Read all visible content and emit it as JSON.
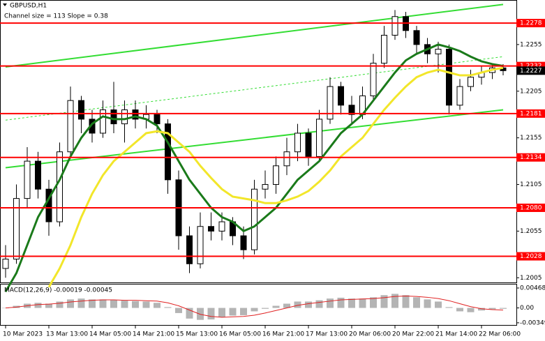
{
  "chart_data": [
    {
      "type": "candlestick",
      "title": "GBPUSD,H1",
      "subtitle": "Channel size = 113 Slope = 0.38",
      "categories": [
        "10 Mar 2023",
        null,
        null,
        null,
        "13 Mar 13:00",
        null,
        null,
        null,
        "14 Mar 05:00",
        null,
        null,
        null,
        "14 Mar 21:00",
        null,
        null,
        null,
        "15 Mar 13:00",
        null,
        null,
        null,
        "16 Mar 05:00",
        null,
        null,
        null,
        "16 Mar 21:00",
        null,
        null,
        null,
        "17 Mar 13:00",
        null,
        null,
        null,
        "20 Mar 06:00",
        null,
        null,
        null,
        "20 Mar 22:00",
        null,
        null,
        null,
        "21 Mar 14:00",
        null,
        null,
        null,
        "22 Mar 06:00",
        null,
        null
      ],
      "open": [
        1.2015,
        1.2025,
        1.209,
        1.213,
        1.21,
        1.2065,
        1.214,
        1.2195,
        1.2175,
        1.216,
        1.2185,
        1.217,
        1.2185,
        1.2175,
        1.218,
        1.217,
        1.211,
        1.205,
        1.202,
        1.206,
        1.2055,
        1.2065,
        1.205,
        1.2035,
        1.21,
        1.2105,
        1.2125,
        1.214,
        1.216,
        1.2135,
        1.2175,
        1.221,
        1.219,
        1.218,
        1.22,
        1.2235,
        1.2265,
        1.2285,
        1.227,
        1.2255,
        1.2245,
        1.225,
        1.219,
        1.221,
        1.222,
        1.2225,
        1.223
      ],
      "high": [
        1.204,
        1.2105,
        1.2145,
        1.214,
        1.211,
        1.215,
        1.221,
        1.22,
        1.2185,
        1.2195,
        1.2215,
        1.2195,
        1.2195,
        1.219,
        1.2185,
        1.2175,
        1.212,
        1.206,
        1.2075,
        1.2075,
        1.2075,
        1.207,
        1.206,
        1.211,
        1.212,
        1.2135,
        1.2155,
        1.217,
        1.2165,
        1.2185,
        1.222,
        1.2215,
        1.22,
        1.221,
        1.2245,
        1.2275,
        1.2292,
        1.229,
        1.2275,
        1.2262,
        1.2258,
        1.2255,
        1.2218,
        1.2228,
        1.2232,
        1.2235,
        1.2234
      ],
      "low": [
        1.2005,
        1.202,
        1.208,
        1.209,
        1.205,
        1.206,
        1.2135,
        1.216,
        1.215,
        1.2155,
        1.216,
        1.215,
        1.2165,
        1.2165,
        1.216,
        1.2095,
        1.2035,
        1.201,
        1.2015,
        1.2045,
        1.2045,
        1.204,
        1.2025,
        1.203,
        1.209,
        1.2095,
        1.2115,
        1.213,
        1.2125,
        1.213,
        1.217,
        1.218,
        1.217,
        1.2175,
        1.2195,
        1.223,
        1.226,
        1.2262,
        1.2245,
        1.2235,
        1.2225,
        1.218,
        1.2185,
        1.2205,
        1.2212,
        1.2218,
        1.2222
      ],
      "close": [
        1.2025,
        1.209,
        1.213,
        1.21,
        1.2065,
        1.214,
        1.2195,
        1.2175,
        1.216,
        1.2185,
        1.217,
        1.2185,
        1.2175,
        1.218,
        1.217,
        1.211,
        1.205,
        1.202,
        1.206,
        1.2055,
        1.2065,
        1.205,
        1.2035,
        1.21,
        1.2105,
        1.2125,
        1.214,
        1.216,
        1.2135,
        1.2175,
        1.221,
        1.219,
        1.218,
        1.22,
        1.2235,
        1.2265,
        1.2285,
        1.227,
        1.2255,
        1.2245,
        1.225,
        1.219,
        1.221,
        1.222,
        1.2225,
        1.223,
        1.2227
      ],
      "overlays": [
        {
          "color": "#1a7a1a",
          "values": [
            1.199,
            1.201,
            1.204,
            1.207,
            1.209,
            1.211,
            1.2135,
            1.2155,
            1.217,
            1.2178,
            1.2175,
            1.2175,
            1.2178,
            1.2175,
            1.2168,
            1.215,
            1.213,
            1.211,
            1.2095,
            1.208,
            1.207,
            1.2065,
            1.2055,
            1.206,
            1.207,
            1.208,
            1.2095,
            1.211,
            1.212,
            1.213,
            1.2145,
            1.216,
            1.217,
            1.218,
            1.2195,
            1.221,
            1.2225,
            1.2238,
            1.2245,
            1.225,
            1.2255,
            1.2252,
            1.2248,
            1.2242,
            1.2237,
            1.2234,
            1.2232
          ]
        },
        {
          "color": "#f2e62a",
          "values": [
            null,
            null,
            null,
            null,
            1.1995,
            1.2015,
            1.204,
            1.207,
            1.2095,
            1.2115,
            1.213,
            1.214,
            1.215,
            1.216,
            1.2162,
            1.216,
            1.215,
            1.214,
            1.2125,
            1.2112,
            1.21,
            1.2092,
            1.209,
            1.2088,
            1.2085,
            1.2085,
            1.2088,
            1.2092,
            1.2098,
            1.2108,
            1.212,
            1.2135,
            1.2145,
            1.2155,
            1.217,
            1.2185,
            1.2198,
            1.221,
            1.222,
            1.2225,
            1.2228,
            1.2225,
            1.2222,
            1.2222,
            1.2225,
            1.2228,
            1.223
          ]
        }
      ],
      "trend_lines": [
        {
          "color": "#33dd33",
          "style": "solid",
          "x": [
            0,
            46
          ],
          "values": [
            1.2231,
            1.2298
          ]
        },
        {
          "color": "#33dd33",
          "style": "solid",
          "x": [
            0,
            46
          ],
          "values": [
            1.2123,
            1.2185
          ]
        },
        {
          "color": "#33dd33",
          "style": "dashed",
          "x": [
            0,
            46
          ],
          "values": [
            1.2174,
            1.2242
          ]
        }
      ],
      "levels": {
        "color": "#ff0000",
        "values": [
          1.2278,
          1.2232,
          1.2181,
          1.2134,
          {
            "value": 1.208,
            "label": "1.2080"
          },
          1.2028
        ]
      },
      "last_price": 1.2227,
      "ylim": [
        1.2,
        1.2302
      ],
      "yticks": [
        1.2005,
        1.2055,
        1.2105,
        1.2155,
        1.2205,
        1.2255
      ]
    },
    {
      "type": "macd",
      "title": "MACD(12,26,9) -0.00019 -0.00045",
      "histogram": {
        "color": "#b4b4b4",
        "values": [
          0,
          0.0005,
          0.001,
          0.0012,
          0.001,
          0.0015,
          0.002,
          0.0022,
          0.002,
          0.002,
          0.0018,
          0.0017,
          0.0016,
          0.0015,
          0.0012,
          0.0002,
          -0.0012,
          -0.0025,
          -0.0028,
          -0.0027,
          -0.0022,
          -0.0018,
          -0.0017,
          -0.0008,
          -0.0002,
          0.0005,
          0.001,
          0.0015,
          0.0015,
          0.0018,
          0.0022,
          0.0024,
          0.0022,
          0.0022,
          0.0025,
          0.003,
          0.0033,
          0.003,
          0.0025,
          0.002,
          0.0015,
          0.0002,
          -0.0008,
          -0.001,
          -0.0006,
          -0.0003,
          -0.0002
        ]
      },
      "signal": {
        "color": "#e02020",
        "values": [
          0,
          0.0002,
          0.0005,
          0.0008,
          0.0009,
          0.0011,
          0.0014,
          0.0016,
          0.0018,
          0.0019,
          0.0019,
          0.0018,
          0.0018,
          0.0017,
          0.0016,
          0.0012,
          0.0005,
          -0.0005,
          -0.0015,
          -0.002,
          -0.0022,
          -0.0021,
          -0.002,
          -0.0017,
          -0.0012,
          -0.0006,
          0,
          0.0006,
          0.001,
          0.0013,
          0.0016,
          0.0019,
          0.002,
          0.0021,
          0.0022,
          0.0024,
          0.0027,
          0.0028,
          0.0027,
          0.0025,
          0.0022,
          0.0017,
          0.001,
          0.0003,
          -0.0002,
          -0.0004,
          -0.0005
        ]
      },
      "ylim": [
        -0.004,
        0.0055
      ],
      "yticks": [
        0.00468,
        {
          "value": 0,
          "label": "0.00"
        },
        -0.00349
      ]
    }
  ]
}
